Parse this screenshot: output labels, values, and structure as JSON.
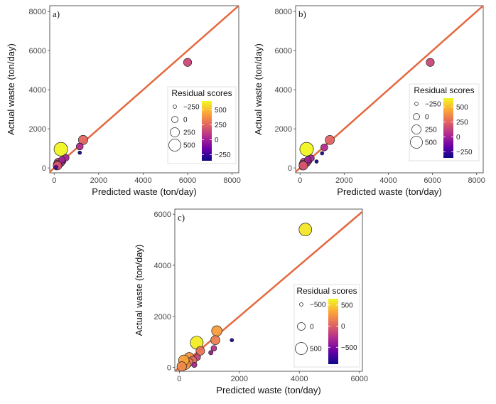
{
  "colors": {
    "line": "#e4683f",
    "frame": "#333333",
    "legend_bg": "#ffffff"
  },
  "chart_data": [
    {
      "type": "scatter",
      "panel_label": "a)",
      "xlabel": "Predicted waste (ton/day)",
      "ylabel": "Actual waste (ton/day)",
      "xlim": [
        -200,
        8300
      ],
      "ylim": [
        -250,
        8300
      ],
      "xticks": [
        0,
        2000,
        4000,
        6000,
        8000
      ],
      "yticks": [
        0,
        2000,
        4000,
        6000,
        8000
      ],
      "xtick_labels": [
        "0",
        "2000",
        "4000",
        "6000",
        "8000"
      ],
      "ytick_labels": [
        "0",
        "2000",
        "4000",
        "6000",
        "8000"
      ],
      "reference_line": "y = x",
      "legend": {
        "title": "Residual scores",
        "size_labels": [
          "−250",
          "0",
          "250",
          "500"
        ],
        "size_values": [
          -250,
          0,
          250,
          500
        ],
        "color_labels": [
          "500",
          "250",
          "0",
          "−250"
        ],
        "color_values": [
          500,
          250,
          0,
          -250
        ],
        "color_range": [
          -350,
          650
        ]
      },
      "points": [
        {
          "x": 6000,
          "y": 5400,
          "r": 150
        },
        {
          "x": 300,
          "y": 960,
          "r": 640
        },
        {
          "x": 1300,
          "y": 1430,
          "r": 260
        },
        {
          "x": 1150,
          "y": 1100,
          "r": 50
        },
        {
          "x": 1150,
          "y": 780,
          "r": -350
        },
        {
          "x": 520,
          "y": 520,
          "r": 30
        },
        {
          "x": 400,
          "y": 330,
          "r": -60
        },
        {
          "x": 300,
          "y": 260,
          "r": 80
        },
        {
          "x": 250,
          "y": 150,
          "r": -100
        },
        {
          "x": 180,
          "y": 300,
          "r": 120
        },
        {
          "x": 200,
          "y": 80,
          "r": -150
        },
        {
          "x": 120,
          "y": 200,
          "r": 60
        },
        {
          "x": 100,
          "y": 50,
          "r": -40
        },
        {
          "x": 350,
          "y": 420,
          "r": 10
        },
        {
          "x": 150,
          "y": 120,
          "r": 200
        },
        {
          "x": 80,
          "y": 30,
          "r": -200
        }
      ]
    },
    {
      "type": "scatter",
      "panel_label": "b)",
      "xlabel": "Predicted waste (ton/day)",
      "ylabel": "Actual waste (ton/day)",
      "xlim": [
        -200,
        8300
      ],
      "ylim": [
        -250,
        8300
      ],
      "xticks": [
        0,
        2000,
        4000,
        6000,
        8000
      ],
      "yticks": [
        0,
        2000,
        4000,
        6000,
        8000
      ],
      "xtick_labels": [
        "0",
        "2000",
        "4000",
        "6000",
        "8000"
      ],
      "ytick_labels": [
        "0",
        "2000",
        "4000",
        "6000",
        "8000"
      ],
      "reference_line": "y = x",
      "legend": {
        "title": "Residual scores",
        "size_labels": [
          "−250",
          "0",
          "250",
          "500"
        ],
        "size_values": [
          -250,
          0,
          250,
          500
        ],
        "color_labels": [
          "500",
          "250",
          "0",
          "−250"
        ],
        "color_values": [
          500,
          250,
          0,
          -250
        ],
        "color_range": [
          -350,
          650
        ]
      },
      "points": [
        {
          "x": 5900,
          "y": 5400,
          "r": 150
        },
        {
          "x": 300,
          "y": 960,
          "r": 640
        },
        {
          "x": 1350,
          "y": 1430,
          "r": 250
        },
        {
          "x": 1100,
          "y": 1050,
          "r": 60
        },
        {
          "x": 1000,
          "y": 750,
          "r": -300
        },
        {
          "x": 750,
          "y": 330,
          "r": -420
        },
        {
          "x": 500,
          "y": 500,
          "r": 20
        },
        {
          "x": 400,
          "y": 330,
          "r": -60
        },
        {
          "x": 300,
          "y": 260,
          "r": 90
        },
        {
          "x": 250,
          "y": 150,
          "r": -100
        },
        {
          "x": 180,
          "y": 300,
          "r": 130
        },
        {
          "x": 200,
          "y": 80,
          "r": -160
        },
        {
          "x": 120,
          "y": 200,
          "r": 60
        },
        {
          "x": 100,
          "y": 50,
          "r": -40
        },
        {
          "x": 350,
          "y": 420,
          "r": 10
        },
        {
          "x": 150,
          "y": 120,
          "r": 210
        }
      ]
    },
    {
      "type": "scatter",
      "panel_label": "c)",
      "xlabel": "Predicted waste (ton/day)",
      "ylabel": "Actual waste (ton/day)",
      "xlim": [
        -150,
        6100
      ],
      "ylim": [
        -150,
        6200
      ],
      "xticks": [
        0,
        2000,
        4000,
        6000
      ],
      "yticks": [
        0,
        2000,
        4000,
        6000
      ],
      "xtick_labels": [
        "0",
        "2000",
        "4000",
        "6000"
      ],
      "ytick_labels": [
        "0",
        "2000",
        "4000",
        "6000"
      ],
      "reference_line": "y = x",
      "legend": {
        "title": "Residual scores",
        "size_labels": [
          "−500",
          "0",
          "500"
        ],
        "size_values": [
          -500,
          0,
          500
        ],
        "color_labels": [
          "500",
          "0",
          "−500"
        ],
        "color_values": [
          500,
          0,
          -500
        ],
        "color_range": [
          -900,
          650
        ]
      },
      "points": [
        {
          "x": 4200,
          "y": 5400,
          "r": 580
        },
        {
          "x": 580,
          "y": 970,
          "r": 600
        },
        {
          "x": 1250,
          "y": 1430,
          "r": 300
        },
        {
          "x": 1200,
          "y": 1070,
          "r": 150
        },
        {
          "x": 1150,
          "y": 750,
          "r": -250
        },
        {
          "x": 1050,
          "y": 580,
          "r": -400
        },
        {
          "x": 1750,
          "y": 1070,
          "r": -850
        },
        {
          "x": 330,
          "y": 390,
          "r": 250
        },
        {
          "x": 600,
          "y": 400,
          "r": -150
        },
        {
          "x": 450,
          "y": 280,
          "r": 50
        },
        {
          "x": 300,
          "y": 200,
          "r": 150
        },
        {
          "x": 200,
          "y": 120,
          "r": 280
        },
        {
          "x": 150,
          "y": 280,
          "r": 320
        },
        {
          "x": 80,
          "y": 40,
          "r": 200
        },
        {
          "x": 700,
          "y": 650,
          "r": 100
        },
        {
          "x": 500,
          "y": 100,
          "r": -300
        }
      ]
    }
  ]
}
